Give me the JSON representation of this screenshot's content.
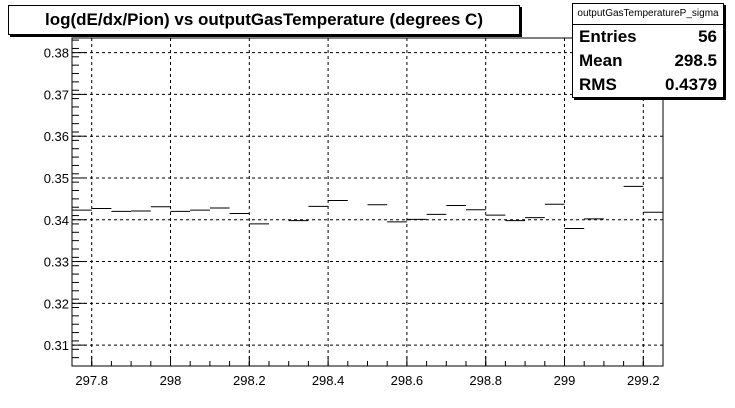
{
  "title": "log(dE/dx/Pion) vs outputGasTemperature (degrees C)",
  "stats": {
    "name": "outputGasTemperatureP_sigma",
    "rows": [
      {
        "label": "Entries",
        "value": "56"
      },
      {
        "label": "Mean",
        "value": "298.5"
      },
      {
        "label": "RMS",
        "value": "0.4379"
      }
    ]
  },
  "chart_data": {
    "type": "scatter",
    "title": "log(dE/dx/Pion) vs outputGasTemperature (degrees C)",
    "xlabel": "",
    "ylabel": "",
    "xlim": [
      297.75,
      299.25
    ],
    "ylim": [
      0.305,
      0.3835
    ],
    "grid": true,
    "bin_width": 0.05,
    "x_ticks": [
      297.8,
      298,
      298.2,
      298.4,
      298.6,
      298.8,
      299,
      299.2
    ],
    "x_tick_labels": [
      "297.8",
      "298",
      "298.2",
      "298.4",
      "298.6",
      "298.8",
      "299",
      "299.2"
    ],
    "y_ticks": [
      0.31,
      0.32,
      0.33,
      0.34,
      0.35,
      0.36,
      0.37,
      0.38
    ],
    "y_tick_labels": [
      "0.31",
      "0.32",
      "0.33",
      "0.34",
      "0.35",
      "0.36",
      "0.37",
      "0.38"
    ],
    "points": [
      {
        "x": 297.775,
        "y": 0.3423
      },
      {
        "x": 297.825,
        "y": 0.3427
      },
      {
        "x": 297.875,
        "y": 0.342
      },
      {
        "x": 297.925,
        "y": 0.3421
      },
      {
        "x": 297.975,
        "y": 0.3431
      },
      {
        "x": 298.025,
        "y": 0.342
      },
      {
        "x": 298.075,
        "y": 0.3423
      },
      {
        "x": 298.125,
        "y": 0.3428
      },
      {
        "x": 298.175,
        "y": 0.3415
      },
      {
        "x": 298.225,
        "y": 0.339
      },
      {
        "x": 298.325,
        "y": 0.3398
      },
      {
        "x": 298.375,
        "y": 0.3432
      },
      {
        "x": 298.425,
        "y": 0.3446
      },
      {
        "x": 298.525,
        "y": 0.3436
      },
      {
        "x": 298.575,
        "y": 0.3395
      },
      {
        "x": 298.625,
        "y": 0.3401
      },
      {
        "x": 298.675,
        "y": 0.3413
      },
      {
        "x": 298.725,
        "y": 0.3434
      },
      {
        "x": 298.775,
        "y": 0.3424
      },
      {
        "x": 298.825,
        "y": 0.3411
      },
      {
        "x": 298.875,
        "y": 0.3398
      },
      {
        "x": 298.925,
        "y": 0.3405
      },
      {
        "x": 298.975,
        "y": 0.3437
      },
      {
        "x": 299.025,
        "y": 0.3379
      },
      {
        "x": 299.075,
        "y": 0.3402
      },
      {
        "x": 299.175,
        "y": 0.348
      },
      {
        "x": 299.225,
        "y": 0.3418
      }
    ]
  }
}
